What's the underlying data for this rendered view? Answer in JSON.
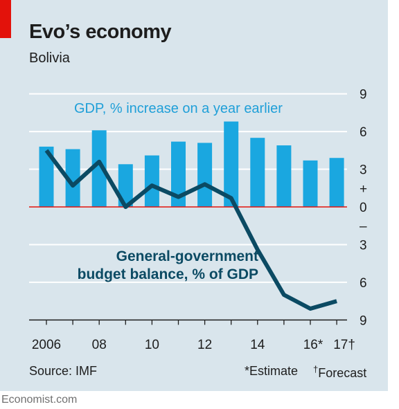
{
  "header": {
    "title": "Evo’s economy",
    "subtitle": "Bolivia"
  },
  "footer": {
    "source": "Source: IMF",
    "estimate_note": "*Estimate",
    "forecast_mark": "†",
    "forecast_text": "Forecast",
    "credit": "Economist.com"
  },
  "colors": {
    "accent_red": "#e3120b",
    "bars": "#1aa7e0",
    "line": "#0b4a63",
    "zero_line": "#e3120b",
    "background": "#d9e5ec"
  },
  "chart_data": {
    "type": "bar+line",
    "title": "Evo’s economy",
    "subtitle": "Bolivia",
    "x": [
      2006,
      2007,
      2008,
      2009,
      2010,
      2011,
      2012,
      2013,
      2014,
      2015,
      2016,
      2017
    ],
    "x_tick_labels": [
      "2006",
      "08",
      "10",
      "12",
      "14",
      "16*",
      "17†"
    ],
    "y_tick_labels": [
      "9",
      "6",
      "3",
      "+",
      "0",
      "–",
      "3",
      "6",
      "9"
    ],
    "ylim": [
      -9,
      9
    ],
    "grid": true,
    "series": [
      {
        "name": "GDP, % increase on a year earlier",
        "kind": "bar",
        "color": "#1aa7e0",
        "values": [
          4.8,
          4.6,
          6.1,
          3.4,
          4.1,
          5.2,
          5.1,
          6.8,
          5.5,
          4.9,
          3.7,
          3.9
        ]
      },
      {
        "name": "General-government budget balance, % of GDP",
        "kind": "line",
        "color": "#0b4a63",
        "values": [
          4.5,
          1.7,
          3.6,
          0.0,
          1.7,
          0.8,
          1.8,
          0.7,
          -3.4,
          -7.0,
          -8.1,
          -7.5
        ]
      }
    ]
  }
}
